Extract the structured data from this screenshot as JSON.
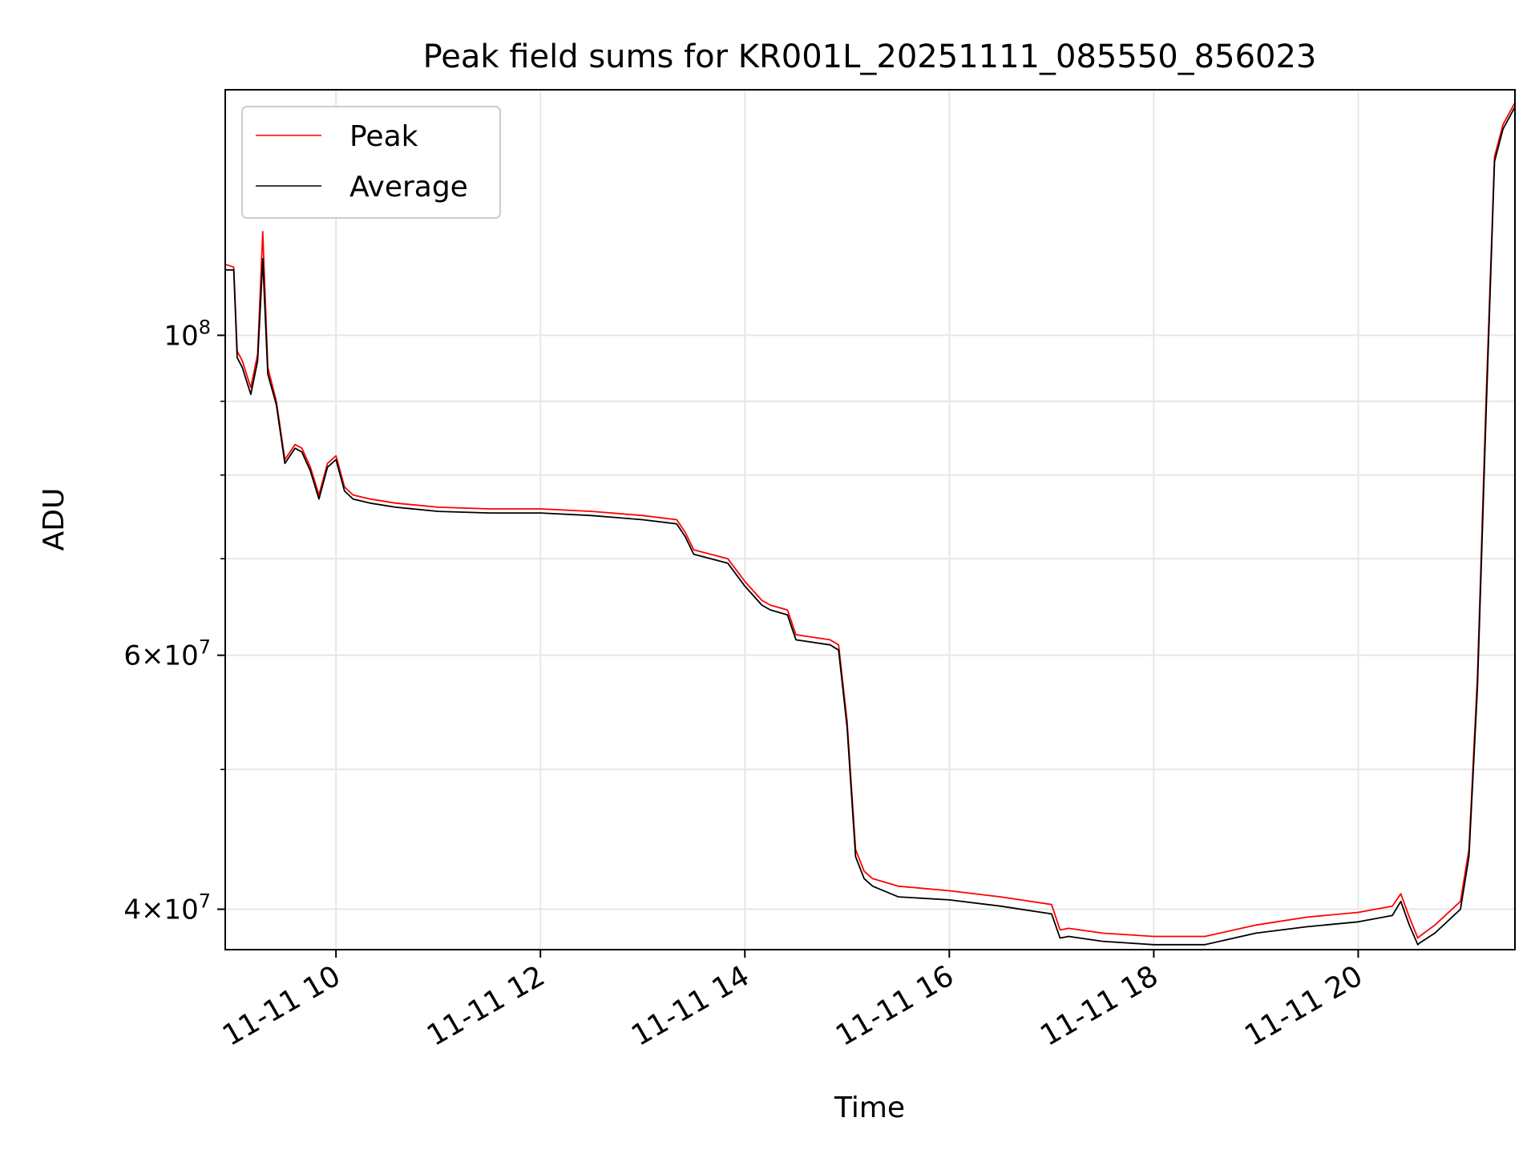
{
  "chart_data": {
    "type": "line",
    "title": "Peak field sums for KR001L_20251111_085550_856023",
    "xlabel": "Time",
    "ylabel": "ADU",
    "yscale": "log",
    "xlim": [
      "2025-11-11 08:55",
      "2025-11-11 21:32"
    ],
    "ylim": [
      37500000,
      148000000
    ],
    "grid": true,
    "legend": "top-left",
    "colors": {
      "Peak": "#ff0000",
      "Average": "#000000",
      "grid": "#e6e6e6"
    },
    "x_ticks": [
      {
        "t": "2025-11-11 10:00",
        "label": "11-11 10"
      },
      {
        "t": "2025-11-11 12:00",
        "label": "11-11 12"
      },
      {
        "t": "2025-11-11 14:00",
        "label": "11-11 14"
      },
      {
        "t": "2025-11-11 16:00",
        "label": "11-11 16"
      },
      {
        "t": "2025-11-11 18:00",
        "label": "11-11 18"
      },
      {
        "t": "2025-11-11 20:00",
        "label": "11-11 20"
      }
    ],
    "y_ticks_major": [
      {
        "value": 40000000,
        "mantissa": "4",
        "times": "×",
        "base": "10",
        "exp": "7"
      },
      {
        "value": 60000000,
        "mantissa": "6",
        "times": "×",
        "base": "10",
        "exp": "7"
      },
      {
        "value": 100000000,
        "mantissa": "",
        "times": "",
        "base": "10",
        "exp": "8"
      }
    ],
    "y_ticks_minor": [
      50000000,
      70000000,
      80000000,
      90000000
    ],
    "series": [
      {
        "name": "Peak",
        "x": [
          "2025-11-11 08:55",
          "2025-11-11 09:00",
          "2025-11-11 09:02",
          "2025-11-11 09:05",
          "2025-11-11 09:10",
          "2025-11-11 09:14",
          "2025-11-11 09:17",
          "2025-11-11 09:20",
          "2025-11-11 09:25",
          "2025-11-11 09:30",
          "2025-11-11 09:36",
          "2025-11-11 09:40",
          "2025-11-11 09:45",
          "2025-11-11 09:50",
          "2025-11-11 09:55",
          "2025-11-11 10:00",
          "2025-11-11 10:05",
          "2025-11-11 10:10",
          "2025-11-11 10:20",
          "2025-11-11 10:35",
          "2025-11-11 11:00",
          "2025-11-11 11:30",
          "2025-11-11 12:00",
          "2025-11-11 12:30",
          "2025-11-11 13:00",
          "2025-11-11 13:20",
          "2025-11-11 13:25",
          "2025-11-11 13:30",
          "2025-11-11 13:50",
          "2025-11-11 14:00",
          "2025-11-11 14:10",
          "2025-11-11 14:15",
          "2025-11-11 14:25",
          "2025-11-11 14:30",
          "2025-11-11 14:50",
          "2025-11-11 14:55",
          "2025-11-11 15:00",
          "2025-11-11 15:05",
          "2025-11-11 15:10",
          "2025-11-11 15:15",
          "2025-11-11 15:30",
          "2025-11-11 16:00",
          "2025-11-11 16:30",
          "2025-11-11 17:00",
          "2025-11-11 17:05",
          "2025-11-11 17:10",
          "2025-11-11 17:30",
          "2025-11-11 18:00",
          "2025-11-11 18:30",
          "2025-11-11 19:00",
          "2025-11-11 19:30",
          "2025-11-11 20:00",
          "2025-11-11 20:20",
          "2025-11-11 20:25",
          "2025-11-11 20:30",
          "2025-11-11 20:35",
          "2025-11-11 20:36",
          "2025-11-11 20:45",
          "2025-11-11 21:00",
          "2025-11-11 21:05",
          "2025-11-11 21:10",
          "2025-11-11 21:15",
          "2025-11-11 21:20",
          "2025-11-11 21:25",
          "2025-11-11 21:32"
        ],
        "y": [
          112000000,
          111500000,
          97500000,
          96000000,
          92000000,
          97000000,
          118000000,
          95000000,
          90000000,
          82000000,
          84000000,
          83500000,
          81000000,
          77500000,
          81500000,
          82500000,
          78500000,
          77500000,
          77000000,
          76500000,
          76000000,
          75800000,
          75800000,
          75500000,
          75000000,
          74500000,
          73000000,
          71000000,
          70000000,
          67500000,
          65500000,
          65000000,
          64500000,
          62000000,
          61500000,
          61000000,
          54000000,
          44000000,
          42500000,
          42000000,
          41500000,
          41200000,
          40800000,
          40300000,
          38700000,
          38800000,
          38500000,
          38300000,
          38300000,
          39000000,
          39500000,
          39800000,
          40200000,
          41000000,
          39500000,
          38200000,
          38300000,
          39000000,
          40500000,
          44000000,
          58000000,
          90000000,
          133000000,
          140000000,
          145000000
        ]
      },
      {
        "name": "Average",
        "x": [
          "2025-11-11 08:55",
          "2025-11-11 09:00",
          "2025-11-11 09:02",
          "2025-11-11 09:05",
          "2025-11-11 09:10",
          "2025-11-11 09:14",
          "2025-11-11 09:17",
          "2025-11-11 09:20",
          "2025-11-11 09:25",
          "2025-11-11 09:30",
          "2025-11-11 09:36",
          "2025-11-11 09:40",
          "2025-11-11 09:45",
          "2025-11-11 09:50",
          "2025-11-11 09:55",
          "2025-11-11 10:00",
          "2025-11-11 10:05",
          "2025-11-11 10:10",
          "2025-11-11 10:20",
          "2025-11-11 10:35",
          "2025-11-11 11:00",
          "2025-11-11 11:30",
          "2025-11-11 12:00",
          "2025-11-11 12:30",
          "2025-11-11 13:00",
          "2025-11-11 13:20",
          "2025-11-11 13:25",
          "2025-11-11 13:30",
          "2025-11-11 13:50",
          "2025-11-11 14:00",
          "2025-11-11 14:10",
          "2025-11-11 14:15",
          "2025-11-11 14:25",
          "2025-11-11 14:30",
          "2025-11-11 14:50",
          "2025-11-11 14:55",
          "2025-11-11 15:00",
          "2025-11-11 15:05",
          "2025-11-11 15:10",
          "2025-11-11 15:15",
          "2025-11-11 15:30",
          "2025-11-11 16:00",
          "2025-11-11 16:30",
          "2025-11-11 17:00",
          "2025-11-11 17:05",
          "2025-11-11 17:10",
          "2025-11-11 17:30",
          "2025-11-11 18:00",
          "2025-11-11 18:30",
          "2025-11-11 19:00",
          "2025-11-11 19:30",
          "2025-11-11 20:00",
          "2025-11-11 20:20",
          "2025-11-11 20:25",
          "2025-11-11 20:30",
          "2025-11-11 20:35",
          "2025-11-11 20:36",
          "2025-11-11 20:45",
          "2025-11-11 21:00",
          "2025-11-11 21:05",
          "2025-11-11 21:10",
          "2025-11-11 21:15",
          "2025-11-11 21:20",
          "2025-11-11 21:25",
          "2025-11-11 21:32"
        ],
        "y": [
          111000000,
          111000000,
          96500000,
          95000000,
          91000000,
          96000000,
          113000000,
          94000000,
          89500000,
          81500000,
          83500000,
          83000000,
          80500000,
          77000000,
          81000000,
          82000000,
          78000000,
          77000000,
          76500000,
          76000000,
          75500000,
          75300000,
          75300000,
          75000000,
          74500000,
          74000000,
          72500000,
          70500000,
          69500000,
          67000000,
          65000000,
          64500000,
          64000000,
          61500000,
          61000000,
          60500000,
          53500000,
          43500000,
          42000000,
          41500000,
          40800000,
          40600000,
          40200000,
          39700000,
          38200000,
          38300000,
          38000000,
          37800000,
          37800000,
          38500000,
          38900000,
          39200000,
          39600000,
          40500000,
          39000000,
          37800000,
          37900000,
          38500000,
          40000000,
          43500000,
          57000000,
          88000000,
          132000000,
          139000000,
          144000000
        ]
      }
    ]
  }
}
